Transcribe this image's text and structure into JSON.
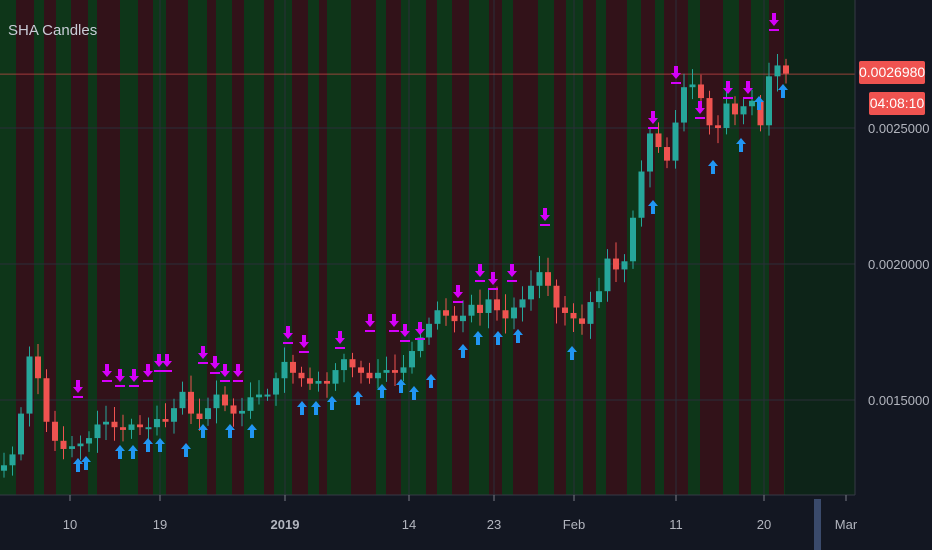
{
  "indicator": {
    "name": "SHA Candles"
  },
  "price_scale": {
    "ticks": [
      "0.0015000",
      "0.0020000",
      "0.0025000"
    ],
    "last_price_label": "0.0026980",
    "countdown_label": "04:08:10"
  },
  "time_scale": {
    "ticks": [
      "10",
      "19",
      "2019",
      "14",
      "23",
      "Feb",
      "11",
      "20",
      "Mar"
    ]
  },
  "colors": {
    "background": "#131722",
    "up_candle": "#26a69a",
    "down_candle": "#ef5350",
    "buy_arrow": "#2196f3",
    "sell_arrow": "#d500f9",
    "bull_band": "#0f3a1a",
    "bear_band": "#3a0f1a",
    "price_line": "#ef5350"
  },
  "chart_data": {
    "type": "candlestick",
    "title": "SHA Candles",
    "ylim": [
      0.00118,
      0.00285
    ],
    "y_ticks": [
      0.0015,
      0.002,
      0.0025
    ],
    "last_price": 0.002698,
    "x_tick_labels": [
      "10",
      "19",
      "2019",
      "14",
      "23",
      "Feb",
      "11",
      "20",
      "Mar"
    ],
    "close_series": [
      0.00126,
      0.0013,
      0.00145,
      0.00166,
      0.00158,
      0.00142,
      0.00135,
      0.00132,
      0.00133,
      0.00134,
      0.00136,
      0.00141,
      0.00142,
      0.0014,
      0.00139,
      0.00141,
      0.0014,
      0.0014,
      0.00143,
      0.00142,
      0.00147,
      0.00153,
      0.00145,
      0.00143,
      0.00147,
      0.00152,
      0.00148,
      0.00145,
      0.00146,
      0.00151,
      0.00152,
      0.00152,
      0.00158,
      0.00164,
      0.0016,
      0.00158,
      0.00156,
      0.00157,
      0.00156,
      0.00161,
      0.00165,
      0.00162,
      0.0016,
      0.00158,
      0.0016,
      0.00161,
      0.0016,
      0.00162,
      0.00168,
      0.00173,
      0.00178,
      0.00183,
      0.00181,
      0.00179,
      0.00181,
      0.00185,
      0.00182,
      0.00187,
      0.00183,
      0.0018,
      0.00184,
      0.00187,
      0.00192,
      0.00197,
      0.00192,
      0.00184,
      0.00182,
      0.0018,
      0.00178,
      0.00186,
      0.0019,
      0.00202,
      0.00198,
      0.00201,
      0.00217,
      0.00234,
      0.00248,
      0.00243,
      0.00238,
      0.00252,
      0.00265,
      0.00266,
      0.00261,
      0.00251,
      0.0025,
      0.00259,
      0.00255,
      0.00258,
      0.0026,
      0.00251,
      0.00269,
      0.00273,
      0.0027
    ]
  }
}
